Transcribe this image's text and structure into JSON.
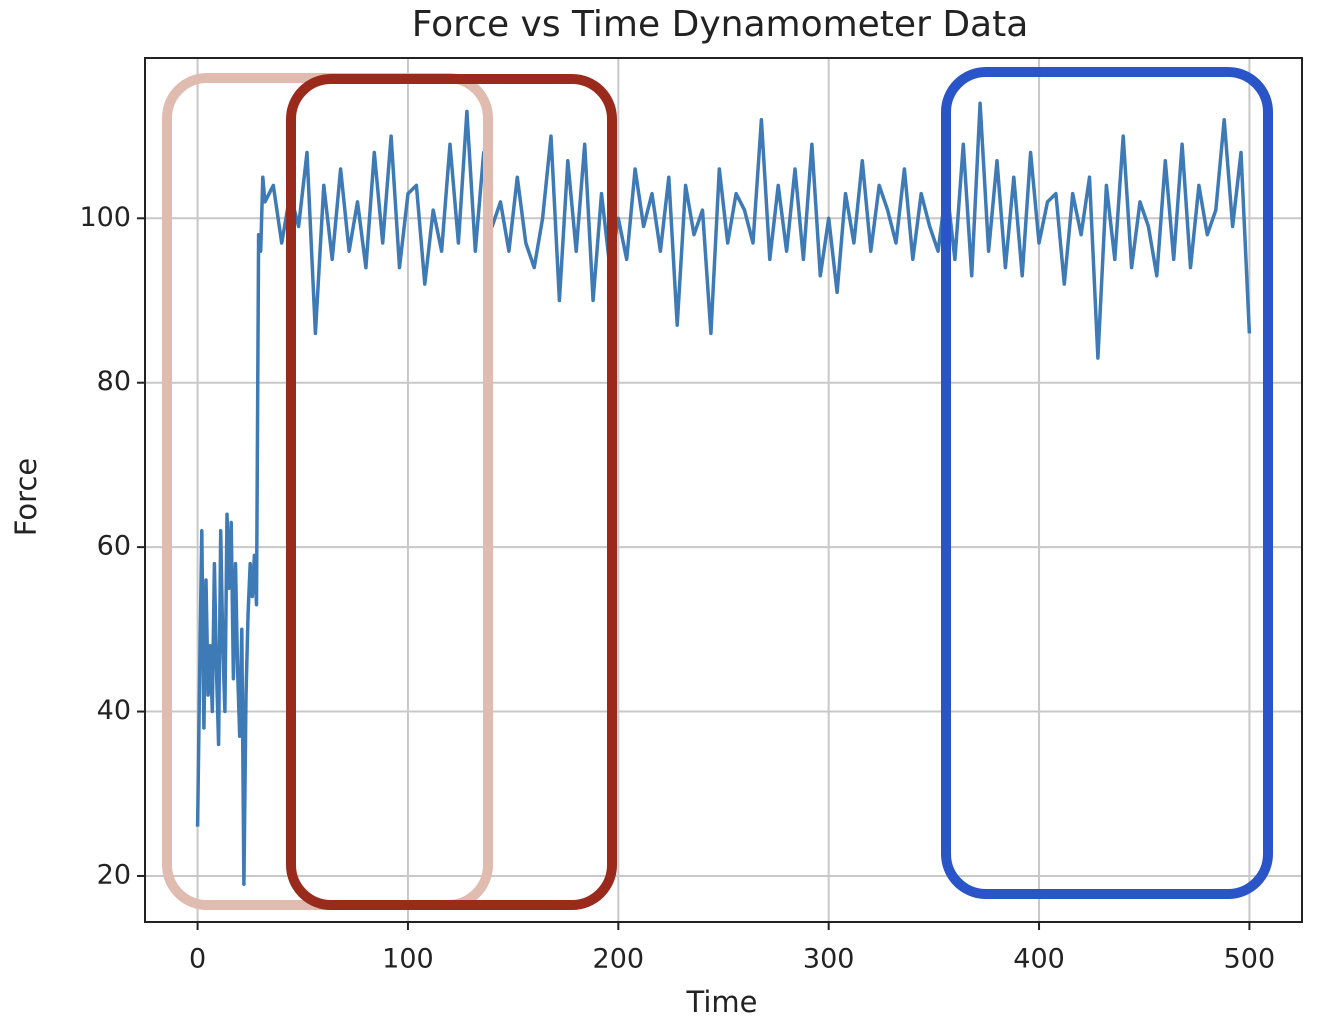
{
  "chart_data": {
    "type": "line",
    "title": "Force vs Time Dynamometer Data",
    "x_label": "Time",
    "y_label": "Force",
    "x": [
      0,
      1,
      2,
      3,
      4,
      5,
      6,
      7,
      8,
      9,
      10,
      11,
      12,
      13,
      14,
      15,
      16,
      17,
      18,
      19,
      20,
      21,
      22,
      23,
      24,
      25,
      26,
      27,
      28,
      29,
      30,
      31,
      32,
      36,
      40,
      44,
      48,
      52,
      56,
      60,
      64,
      68,
      72,
      76,
      80,
      84,
      88,
      92,
      96,
      100,
      104,
      108,
      112,
      116,
      120,
      124,
      128,
      132,
      136,
      140,
      144,
      148,
      152,
      156,
      160,
      164,
      168,
      172,
      176,
      180,
      184,
      188,
      192,
      196,
      200,
      204,
      208,
      212,
      216,
      220,
      224,
      228,
      232,
      236,
      240,
      244,
      248,
      252,
      256,
      260,
      264,
      268,
      272,
      276,
      280,
      284,
      288,
      292,
      296,
      300,
      304,
      308,
      312,
      316,
      320,
      324,
      328,
      332,
      336,
      340,
      344,
      348,
      352,
      356,
      360,
      364,
      368,
      372,
      376,
      380,
      384,
      388,
      392,
      396,
      400,
      404,
      408,
      412,
      416,
      420,
      424,
      428,
      432,
      436,
      440,
      444,
      448,
      452,
      456,
      460,
      464,
      468,
      472,
      476,
      480,
      484,
      488,
      492,
      496,
      500
    ],
    "series": [
      {
        "name": "Force",
        "color": "#3e7ab5",
        "values": [
          26,
          45,
          62,
          38,
          56,
          42,
          48,
          40,
          58,
          45,
          36,
          62,
          48,
          40,
          64,
          55,
          63,
          44,
          58,
          45,
          37,
          50,
          19,
          42,
          52,
          58,
          54,
          59,
          53,
          98,
          96,
          105,
          102,
          104,
          97,
          103,
          99,
          108,
          86,
          104,
          95,
          106,
          96,
          102,
          94,
          108,
          97,
          110,
          94,
          103,
          104,
          92,
          101,
          96,
          109,
          97,
          113,
          96,
          108,
          99,
          102,
          96,
          105,
          97,
          94,
          100,
          110,
          90,
          107,
          96,
          109,
          90,
          103,
          94,
          100,
          95,
          106,
          99,
          103,
          96,
          105,
          87,
          104,
          98,
          101,
          86,
          106,
          97,
          103,
          101,
          97,
          112,
          95,
          104,
          96,
          106,
          95,
          109,
          93,
          100,
          91,
          103,
          97,
          107,
          96,
          104,
          101,
          97,
          106,
          95,
          103,
          99,
          96,
          104,
          95,
          109,
          93,
          114,
          96,
          107,
          94,
          105,
          93,
          108,
          97,
          102,
          103,
          92,
          103,
          98,
          105,
          83,
          104,
          95,
          110,
          94,
          102,
          99,
          93,
          107,
          95,
          109,
          94,
          104,
          98,
          101,
          112,
          99,
          108,
          86
        ]
      }
    ],
    "xlim": [
      -25,
      525
    ],
    "ylim": [
      14.4,
      119.5
    ],
    "xticks": [
      0,
      100,
      200,
      300,
      400,
      500
    ],
    "yticks": [
      20,
      40,
      60,
      80,
      100
    ],
    "grid": true
  }
}
